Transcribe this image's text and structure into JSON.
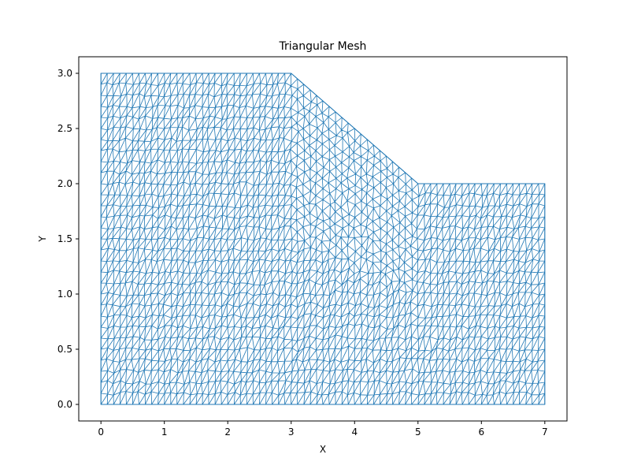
{
  "chart_data": {
    "type": "triangular_mesh",
    "title": "Triangular Mesh",
    "xlabel": "X",
    "ylabel": "Y",
    "xlim": [
      -0.35,
      7.35
    ],
    "ylim": [
      -0.15,
      3.15
    ],
    "xticks": [
      0,
      1,
      2,
      3,
      4,
      5,
      6,
      7
    ],
    "xtick_labels": [
      "0",
      "1",
      "2",
      "3",
      "4",
      "5",
      "6",
      "7"
    ],
    "yticks": [
      0.0,
      0.5,
      1.0,
      1.5,
      2.0,
      2.5,
      3.0
    ],
    "ytick_labels": [
      "0.0",
      "0.5",
      "1.0",
      "1.5",
      "2.0",
      "2.5",
      "3.0"
    ],
    "line_color": "#1f77b4",
    "domain_outline": [
      [
        0,
        0
      ],
      [
        7,
        0
      ],
      [
        7,
        2
      ],
      [
        5,
        2
      ],
      [
        3,
        3
      ],
      [
        0,
        3
      ]
    ],
    "approx_element_size": 0.1,
    "grid": false
  }
}
